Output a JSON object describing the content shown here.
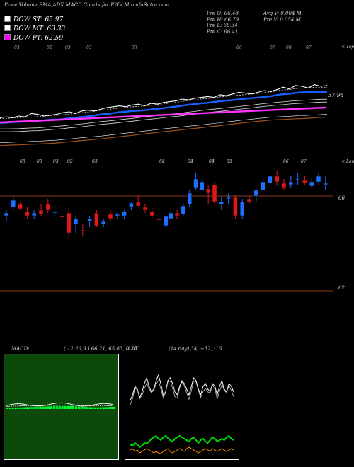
{
  "header": {
    "title": "Price,Volume,EMA,ADX,MACD Charts for PWV MunafaSutra.com",
    "stats_left": [
      "Pre  O: 66.48",
      "Pre  H: 66.79",
      "Pre  L: 66.34",
      "Pre  C: 66.41"
    ],
    "stats_right": [
      "Avg V: 0.004  M",
      "Pre  V: 0.054  M"
    ]
  },
  "legend": [
    {
      "label": "DOW ST: 65.97",
      "color": "#ffffff"
    },
    {
      "label": "DOW MT: 63.33",
      "color": "#ffffff"
    },
    {
      "label": "DOW PT: 62.59",
      "color": "#ff00ff"
    }
  ],
  "colors": {
    "up": "#1f6fff",
    "down": "#e01818",
    "ema_blue": "#1560ff",
    "ema_long": "#ff33ff",
    "level": "#8b3a1a",
    "adx_green": "#00dd00",
    "adx_orange": "#ff8c00"
  },
  "chart_data": [
    {
      "type": "line",
      "name": "ema-panel",
      "top_right_label": "< Tops",
      "value_label": "57.94",
      "ema_long_range": [
        25,
        31
      ],
      "date_ticks": [
        "03",
        "02",
        "03",
        "03",
        "03",
        "06",
        "07",
        "08",
        "07",
        "09"
      ],
      "series": [
        {
          "values": [
            28,
            29,
            28,
            30,
            29,
            33,
            32,
            30,
            31,
            32,
            34,
            35,
            33,
            36,
            37,
            36,
            38,
            40,
            41,
            42,
            41,
            43,
            44,
            42,
            45,
            44,
            46,
            47,
            48,
            50,
            49,
            51,
            52,
            53,
            52,
            55,
            54,
            56,
            58,
            57,
            56,
            58,
            60,
            59,
            61,
            64,
            62,
            66,
            65,
            63,
            67,
            65,
            66
          ]
        }
      ]
    },
    {
      "type": "candlestick",
      "name": "price-panel",
      "top_right_label": "< Lows",
      "levels": [
        66,
        62
      ],
      "date_ticks": [
        "03",
        "03",
        "03",
        "03",
        "03",
        "04",
        "04",
        "03",
        "03",
        "06",
        "07"
      ],
      "x": [
        0,
        1,
        2,
        3,
        4,
        5,
        6,
        7,
        8,
        9,
        10,
        11,
        12,
        13,
        14,
        15,
        16,
        17,
        18,
        19,
        20,
        21,
        22,
        23,
        23.7,
        24.6,
        25.5,
        26.4,
        27.3,
        28.2,
        29.1,
        30,
        31,
        32,
        33,
        34,
        35,
        36,
        37,
        38,
        39,
        40,
        41,
        42,
        43,
        44,
        45,
        46
      ],
      "ohlc": [
        [
          65.3,
          65.5,
          65.1,
          65.4
        ],
        [
          65.6,
          66.0,
          65.5,
          65.85
        ],
        [
          65.7,
          65.8,
          65.5,
          65.55
        ],
        [
          65.45,
          65.6,
          65.2,
          65.3
        ],
        [
          65.3,
          65.5,
          65.2,
          65.4
        ],
        [
          65.5,
          65.7,
          65.3,
          65.35
        ],
        [
          65.7,
          65.9,
          65.4,
          65.5
        ],
        [
          65.4,
          65.6,
          65.3,
          65.45
        ],
        [
          65.3,
          65.4,
          65.2,
          65.25
        ],
        [
          65.4,
          65.6,
          64.5,
          64.7
        ],
        [
          65.0,
          65.3,
          64.7,
          65.2
        ],
        [
          64.8,
          65.0,
          64.6,
          64.75
        ],
        [
          65.1,
          65.3,
          64.9,
          65.2
        ],
        [
          65.4,
          65.5,
          64.9,
          64.95
        ],
        [
          65.0,
          65.2,
          64.9,
          65.1
        ],
        [
          65.35,
          65.5,
          65.1,
          65.2
        ],
        [
          65.3,
          65.4,
          65.2,
          65.35
        ],
        [
          65.3,
          65.5,
          65.2,
          65.45
        ],
        [
          65.6,
          65.8,
          65.5,
          65.75
        ],
        [
          65.8,
          66.0,
          65.6,
          65.65
        ],
        [
          65.6,
          65.7,
          65.4,
          65.5
        ],
        [
          65.45,
          65.6,
          65.2,
          65.3
        ],
        [
          65.2,
          65.3,
          65.1,
          65.15
        ],
        [
          64.95,
          65.4,
          64.8,
          65.3
        ],
        [
          65.2,
          65.5,
          65.1,
          65.4
        ],
        [
          65.4,
          65.5,
          65.2,
          65.3
        ],
        [
          65.35,
          65.7,
          65.3,
          65.65
        ],
        [
          65.7,
          66.2,
          65.6,
          66.1
        ],
        [
          66.3,
          66.8,
          66.2,
          66.6
        ],
        [
          66.2,
          66.7,
          66.1,
          66.5
        ],
        [
          66.25,
          66.4,
          65.7,
          66.1
        ],
        [
          66.4,
          66.5,
          65.7,
          65.8
        ],
        [
          65.7,
          66.0,
          65.5,
          65.8
        ],
        [
          65.9,
          66.1,
          65.7,
          65.95
        ],
        [
          65.95,
          66.05,
          65.2,
          65.3
        ],
        [
          65.3,
          65.9,
          65.2,
          65.8
        ],
        [
          65.9,
          66.0,
          65.7,
          65.8
        ],
        [
          66.0,
          66.3,
          65.8,
          66.2
        ],
        [
          66.2,
          66.6,
          66.1,
          66.5
        ],
        [
          66.45,
          66.8,
          66.3,
          66.7
        ],
        [
          66.7,
          66.9,
          66.4,
          66.5
        ],
        [
          66.45,
          66.6,
          66.2,
          66.3
        ],
        [
          66.4,
          66.7,
          66.3,
          66.5
        ],
        [
          66.55,
          66.8,
          66.4,
          66.6
        ],
        [
          66.55,
          66.7,
          66.4,
          66.45
        ],
        [
          66.35,
          66.6,
          66.3,
          66.5
        ],
        [
          66.5,
          66.8,
          66.4,
          66.7
        ],
        [
          66.4,
          66.7,
          66.2,
          66.45
        ]
      ]
    },
    {
      "type": "bar",
      "name": "macd-panel",
      "title": "MACD:",
      "readout": "( 12,26,9 ) 66.21, 65.83, 0.38",
      "values": [
        0.2,
        0.24,
        0.28,
        0.32,
        0.34,
        0.38,
        0.4,
        0.42,
        0.45,
        0.48,
        0.5,
        0.52,
        0.54,
        0.56,
        0.58,
        0.6,
        0.62,
        0.63,
        0.64,
        0.66,
        0.68,
        0.7,
        0.7,
        0.68,
        0.66,
        0.62,
        0.58,
        0.54,
        0.5,
        0.46,
        0.42,
        0.4,
        0.38,
        0.38,
        0.4,
        0.42,
        0.44,
        0.46,
        0.5,
        0.52
      ]
    },
    {
      "type": "line",
      "name": "adx-panel",
      "title": "ADX",
      "readout": "(14 day) 34, +32, -16",
      "series": [
        {
          "color": "#ffffff",
          "values": [
            20,
            30,
            45,
            40,
            25,
            35,
            50,
            60,
            45,
            35,
            40,
            55,
            65,
            50,
            30,
            35,
            55,
            60,
            50,
            35,
            30,
            45,
            55,
            50,
            40,
            30,
            45,
            60,
            55,
            40,
            30,
            45,
            50,
            40,
            35,
            50,
            45,
            30,
            45,
            55,
            40,
            35,
            50,
            45,
            35
          ]
        },
        {
          "color": "#00dd00",
          "values": [
            18,
            16,
            20,
            18,
            14,
            16,
            20,
            19,
            22,
            26,
            28,
            30,
            26,
            24,
            28,
            30,
            27,
            24,
            22,
            26,
            28,
            30,
            28,
            26,
            24,
            22,
            26,
            28,
            24,
            20,
            24,
            26,
            22,
            20,
            24,
            28,
            26,
            22,
            24,
            26,
            24,
            28,
            30,
            26,
            24
          ]
        },
        {
          "color": "#ff8c00",
          "values": [
            10,
            12,
            8,
            10,
            6,
            8,
            10,
            12,
            10,
            8,
            6,
            8,
            6,
            5,
            8,
            10,
            12,
            8,
            6,
            8,
            10,
            12,
            10,
            8,
            12,
            14,
            12,
            10,
            8,
            6,
            8,
            10,
            12,
            10,
            8,
            12,
            10,
            8,
            10,
            12,
            10,
            8,
            10,
            12,
            10
          ]
        }
      ]
    }
  ]
}
